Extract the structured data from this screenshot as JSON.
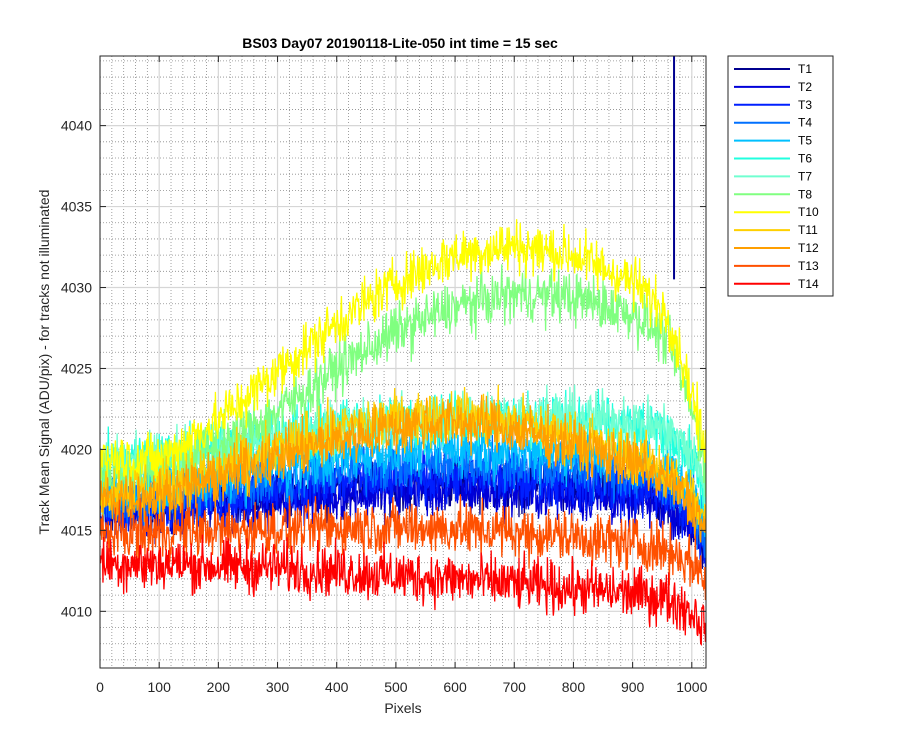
{
  "chart_data": {
    "type": "line",
    "title": "BS03 Day07 20190118-Lite-050 int time = 15 sec",
    "xlabel": "Pixels",
    "ylabel": "Track Mean Signal (ADU/pix) - for tracks not illuminated",
    "xlim": [
      0,
      1024
    ],
    "ylim": [
      4006.5,
      4044.3
    ],
    "xticks": [
      0,
      100,
      200,
      300,
      400,
      500,
      600,
      700,
      800,
      900,
      1000
    ],
    "yticks": [
      4010,
      4015,
      4020,
      4025,
      4030,
      4035,
      4040
    ],
    "grid": "major and minor",
    "legend_position": "outside right, top",
    "noise_note": "each trace is noisy; values below are approximate smoothed means with their noise amplitude",
    "x": [
      0,
      100,
      200,
      300,
      400,
      500,
      600,
      700,
      800,
      900,
      960,
      1000,
      1024
    ],
    "series": [
      {
        "name": "T1",
        "color": "#00008f",
        "values": [
          4016.5,
          4016.5,
          4016.8,
          4017.2,
          4017.6,
          4017.8,
          4018.0,
          4017.8,
          4017.6,
          4017.2,
          4016.8,
          4015.5,
          4013.8
        ],
        "noise": 1.8,
        "spike": {
          "x": 970,
          "from": 4030.5,
          "to": 4044.3
        }
      },
      {
        "name": "T2",
        "color": "#0000d9",
        "values": [
          4016.0,
          4016.2,
          4016.6,
          4016.9,
          4017.2,
          4017.4,
          4017.5,
          4017.4,
          4017.2,
          4016.8,
          4016.4,
          4015.3,
          4013.8
        ],
        "noise": 1.8
      },
      {
        "name": "T3",
        "color": "#0020ff",
        "values": [
          4016.3,
          4016.5,
          4017.0,
          4017.5,
          4017.9,
          4018.2,
          4018.3,
          4018.2,
          4018.0,
          4017.6,
          4017.2,
          4016.0,
          4014.3
        ],
        "noise": 1.8
      },
      {
        "name": "T4",
        "color": "#0070ff",
        "values": [
          4016.5,
          4017.0,
          4017.6,
          4018.2,
          4018.7,
          4019.1,
          4019.2,
          4019.1,
          4018.8,
          4018.4,
          4017.9,
          4016.6,
          4014.8
        ],
        "noise": 1.8
      },
      {
        "name": "T5",
        "color": "#00c0ff",
        "values": [
          4017.3,
          4017.7,
          4018.3,
          4018.9,
          4019.5,
          4019.9,
          4020.1,
          4020.0,
          4019.7,
          4019.3,
          4018.8,
          4017.4,
          4015.6
        ],
        "noise": 1.8
      },
      {
        "name": "T6",
        "color": "#20ffdf",
        "values": [
          4019.0,
          4019.5,
          4020.2,
          4020.9,
          4021.4,
          4021.7,
          4021.9,
          4021.9,
          4021.7,
          4021.4,
          4021.0,
          4019.4,
          4017.4
        ],
        "noise": 1.8
      },
      {
        "name": "T7",
        "color": "#70ffd0",
        "values": [
          4019.0,
          4019.4,
          4020.0,
          4020.7,
          4021.3,
          4021.7,
          4022.0,
          4022.1,
          4022.0,
          4021.7,
          4021.2,
          4019.7,
          4017.6
        ],
        "noise": 1.8
      },
      {
        "name": "T8",
        "color": "#80ff80",
        "values": [
          4018.5,
          4018.8,
          4020.2,
          4022.3,
          4025.0,
          4027.3,
          4028.8,
          4029.6,
          4029.4,
          4028.4,
          4026.8,
          4022.5,
          4019.0
        ],
        "noise": 1.8
      },
      {
        "name": "T10",
        "color": "#ffff00",
        "values": [
          4019.5,
          4019.3,
          4021.8,
          4024.8,
          4027.8,
          4030.3,
          4032.0,
          4032.6,
          4032.0,
          4030.4,
          4028.3,
          4023.5,
          4019.5
        ],
        "noise": 1.8
      },
      {
        "name": "T11",
        "color": "#ffd000",
        "values": [
          4017.5,
          4017.6,
          4018.7,
          4020.0,
          4021.2,
          4021.9,
          4022.2,
          4021.7,
          4020.8,
          4019.6,
          4018.6,
          4017.1,
          4015.5
        ],
        "noise": 1.8
      },
      {
        "name": "T12",
        "color": "#ff9f00",
        "values": [
          4017.0,
          4017.1,
          4018.2,
          4019.5,
          4020.6,
          4021.4,
          4021.7,
          4021.2,
          4020.3,
          4019.1,
          4018.1,
          4016.6,
          4015.0
        ],
        "noise": 1.8
      },
      {
        "name": "T13",
        "color": "#ff5000",
        "values": [
          4014.8,
          4014.9,
          4015.0,
          4015.1,
          4015.2,
          4015.2,
          4015.1,
          4014.9,
          4014.6,
          4014.2,
          4013.8,
          4013.0,
          4012.0
        ],
        "noise": 1.8
      },
      {
        "name": "T14",
        "color": "#ff0000",
        "values": [
          4013.0,
          4012.9,
          4012.8,
          4012.7,
          4012.5,
          4012.2,
          4012.0,
          4011.7,
          4011.4,
          4011.1,
          4010.8,
          4010.0,
          4009.0
        ],
        "noise": 1.8
      }
    ]
  }
}
